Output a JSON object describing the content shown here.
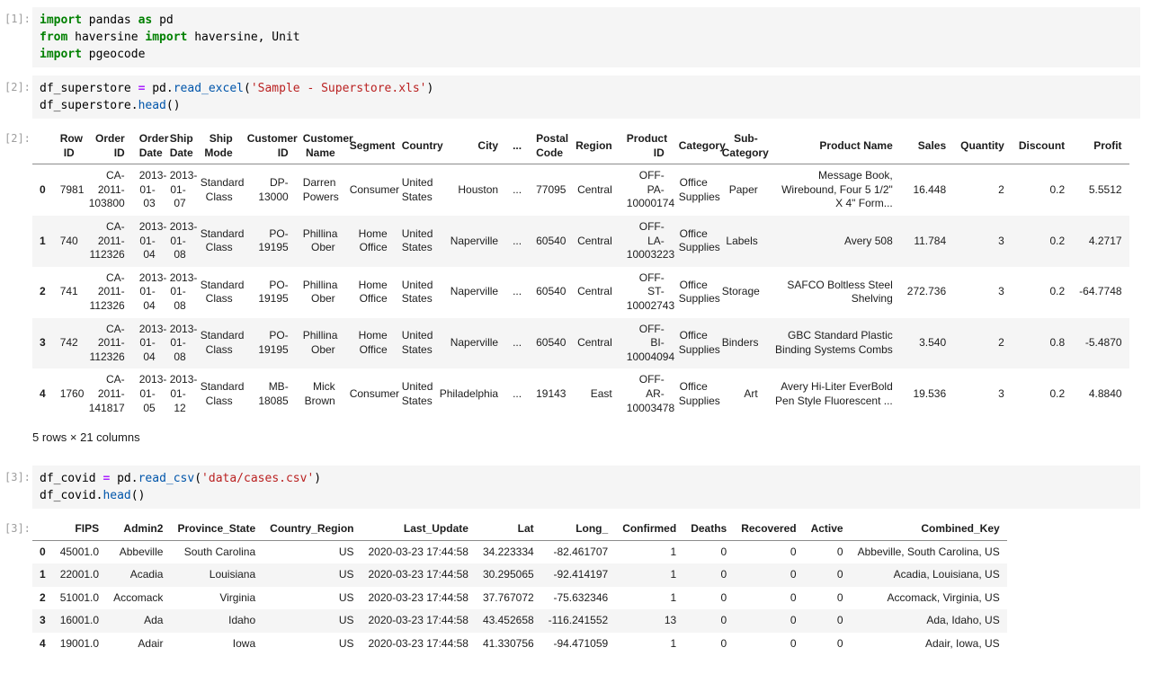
{
  "colors": {
    "code_cell_background": "#f5f5f5",
    "keyword_green": "#008000",
    "operator_purple": "#aa22ff",
    "function_blue": "#0055aa",
    "string_red": "#ba2121",
    "prompt_gray": "#9e9e9e",
    "row_stripe": "#f5f5f5",
    "header_border": "#8c8c8c"
  },
  "cells": {
    "in1": {
      "prompt": "[1]:",
      "lines": [
        [
          {
            "t": "import",
            "c": "k"
          },
          {
            "t": " pandas ",
            "c": "p"
          },
          {
            "t": "as",
            "c": "k"
          },
          {
            "t": " pd",
            "c": "p"
          }
        ],
        [
          {
            "t": "from",
            "c": "k"
          },
          {
            "t": " haversine ",
            "c": "p"
          },
          {
            "t": "import",
            "c": "k"
          },
          {
            "t": " haversine, Unit",
            "c": "p"
          }
        ],
        [
          {
            "t": "import",
            "c": "k"
          },
          {
            "t": " pgeocode",
            "c": "p"
          }
        ]
      ]
    },
    "in2": {
      "prompt": "[2]:",
      "lines": [
        [
          {
            "t": "df_superstore ",
            "c": "p"
          },
          {
            "t": "=",
            "c": "o"
          },
          {
            "t": " pd.",
            "c": "p"
          },
          {
            "t": "read_excel",
            "c": "f"
          },
          {
            "t": "(",
            "c": "p"
          },
          {
            "t": "'Sample - Superstore.xls'",
            "c": "s"
          },
          {
            "t": ")",
            "c": "p"
          }
        ],
        [
          {
            "t": "df_superstore.",
            "c": "p"
          },
          {
            "t": "head",
            "c": "f"
          },
          {
            "t": "()",
            "c": "p"
          }
        ]
      ]
    },
    "out2": {
      "prompt": "[2]:"
    },
    "in3": {
      "prompt": "[3]:",
      "lines": [
        [
          {
            "t": "df_covid ",
            "c": "p"
          },
          {
            "t": "=",
            "c": "o"
          },
          {
            "t": " pd.",
            "c": "p"
          },
          {
            "t": "read_csv",
            "c": "f"
          },
          {
            "t": "(",
            "c": "p"
          },
          {
            "t": "'data/cases.csv'",
            "c": "s"
          },
          {
            "t": ")",
            "c": "p"
          }
        ],
        [
          {
            "t": "df_covid.",
            "c": "p"
          },
          {
            "t": "head",
            "c": "f"
          },
          {
            "t": "()",
            "c": "p"
          }
        ]
      ]
    },
    "out3": {
      "prompt": "[3]:"
    }
  },
  "superstore": {
    "summary": "5 rows × 21 columns",
    "columns": [
      "",
      "Row ID",
      "Order ID",
      "Order Date",
      "Ship Date",
      "Ship Mode",
      "Customer ID",
      "Customer Name",
      "Segment",
      "Country",
      "City",
      "...",
      "Postal Code",
      "Region",
      "Product ID",
      "Category",
      "Sub-Category",
      "Product Name",
      "Sales",
      "Quantity",
      "Discount",
      "Profit"
    ],
    "rows": [
      [
        "0",
        "7981",
        "CA-2011-103800",
        "2013-01-03",
        "2013-01-07",
        "Standard Class",
        "DP-13000",
        "Darren Powers",
        "Consumer",
        "United States",
        "Houston",
        "...",
        "77095",
        "Central",
        "OFF-PA-10000174",
        "Office Supplies",
        "Paper",
        "Message Book, Wirebound, Four 5 1/2\" X 4\" Form...",
        "16.448",
        "2",
        "0.2",
        "5.5512"
      ],
      [
        "1",
        "740",
        "CA-2011-112326",
        "2013-01-04",
        "2013-01-08",
        "Standard Class",
        "PO-19195",
        "Phillina Ober",
        "Home Office",
        "United States",
        "Naperville",
        "...",
        "60540",
        "Central",
        "OFF-LA-10003223",
        "Office Supplies",
        "Labels",
        "Avery 508",
        "11.784",
        "3",
        "0.2",
        "4.2717"
      ],
      [
        "2",
        "741",
        "CA-2011-112326",
        "2013-01-04",
        "2013-01-08",
        "Standard Class",
        "PO-19195",
        "Phillina Ober",
        "Home Office",
        "United States",
        "Naperville",
        "...",
        "60540",
        "Central",
        "OFF-ST-10002743",
        "Office Supplies",
        "Storage",
        "SAFCO Boltless Steel Shelving",
        "272.736",
        "3",
        "0.2",
        "-64.7748"
      ],
      [
        "3",
        "742",
        "CA-2011-112326",
        "2013-01-04",
        "2013-01-08",
        "Standard Class",
        "PO-19195",
        "Phillina Ober",
        "Home Office",
        "United States",
        "Naperville",
        "...",
        "60540",
        "Central",
        "OFF-BI-10004094",
        "Office Supplies",
        "Binders",
        "GBC Standard Plastic Binding Systems Combs",
        "3.540",
        "2",
        "0.8",
        "-5.4870"
      ],
      [
        "4",
        "1760",
        "CA-2011-141817",
        "2013-01-05",
        "2013-01-12",
        "Standard Class",
        "MB-18085",
        "Mick Brown",
        "Consumer",
        "United States",
        "Philadelphia",
        "...",
        "19143",
        "East",
        "OFF-AR-10003478",
        "Office Supplies",
        "Art",
        "Avery Hi-Liter EverBold Pen Style Fluorescent ...",
        "19.536",
        "3",
        "0.2",
        "4.8840"
      ]
    ]
  },
  "covid": {
    "columns": [
      "",
      "FIPS",
      "Admin2",
      "Province_State",
      "Country_Region",
      "Last_Update",
      "Lat",
      "Long_",
      "Confirmed",
      "Deaths",
      "Recovered",
      "Active",
      "Combined_Key"
    ],
    "rows": [
      [
        "0",
        "45001.0",
        "Abbeville",
        "South Carolina",
        "US",
        "2020-03-23 17:44:58",
        "34.223334",
        "-82.461707",
        "1",
        "0",
        "0",
        "0",
        "Abbeville, South Carolina, US"
      ],
      [
        "1",
        "22001.0",
        "Acadia",
        "Louisiana",
        "US",
        "2020-03-23 17:44:58",
        "30.295065",
        "-92.414197",
        "1",
        "0",
        "0",
        "0",
        "Acadia, Louisiana, US"
      ],
      [
        "2",
        "51001.0",
        "Accomack",
        "Virginia",
        "US",
        "2020-03-23 17:44:58",
        "37.767072",
        "-75.632346",
        "1",
        "0",
        "0",
        "0",
        "Accomack, Virginia, US"
      ],
      [
        "3",
        "16001.0",
        "Ada",
        "Idaho",
        "US",
        "2020-03-23 17:44:58",
        "43.452658",
        "-116.241552",
        "13",
        "0",
        "0",
        "0",
        "Ada, Idaho, US"
      ],
      [
        "4",
        "19001.0",
        "Adair",
        "Iowa",
        "US",
        "2020-03-23 17:44:58",
        "41.330756",
        "-94.471059",
        "1",
        "0",
        "0",
        "0",
        "Adair, Iowa, US"
      ]
    ]
  }
}
